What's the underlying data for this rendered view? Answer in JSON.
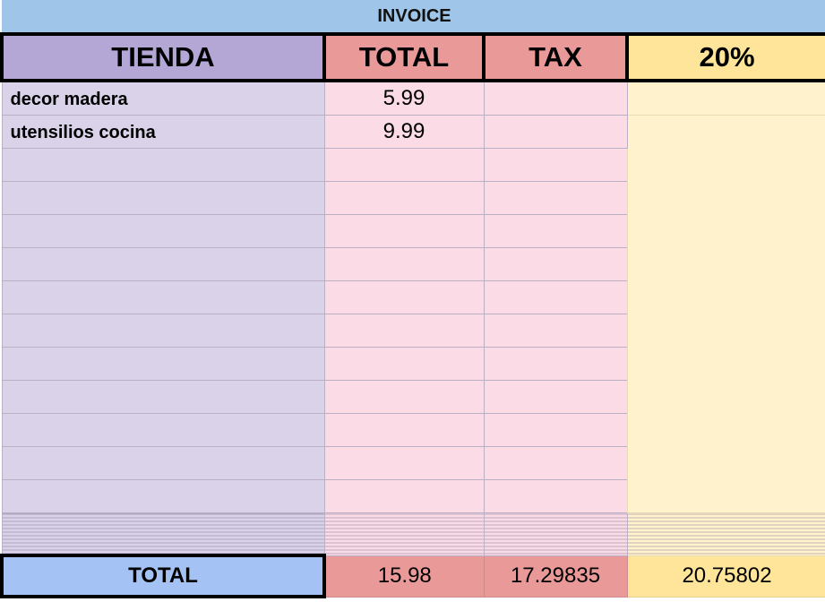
{
  "title": "INVOICE",
  "headers": [
    "TIENDA",
    "TOTAL",
    "TAX",
    "20%"
  ],
  "rows": [
    {
      "tienda": "decor madera",
      "total": "5.99",
      "tax": "",
      "pct": ""
    },
    {
      "tienda": "utensilios cocina",
      "total": "9.99",
      "tax": "",
      "pct": ""
    }
  ],
  "totals": {
    "label": "TOTAL",
    "total": "15.98",
    "tax": "17.29835",
    "pct": "20.75802"
  },
  "colors": {
    "title_bg": "#9fc5e8",
    "tienda_header": "#b4a7d6",
    "tienda_cells": "#d9d2e9",
    "total_header": "#ea9999",
    "total_cells": "#fadbe6",
    "pct_header": "#ffe599",
    "pct_cells": "#fff2cc",
    "total_label_bg": "#a4c2f4"
  }
}
